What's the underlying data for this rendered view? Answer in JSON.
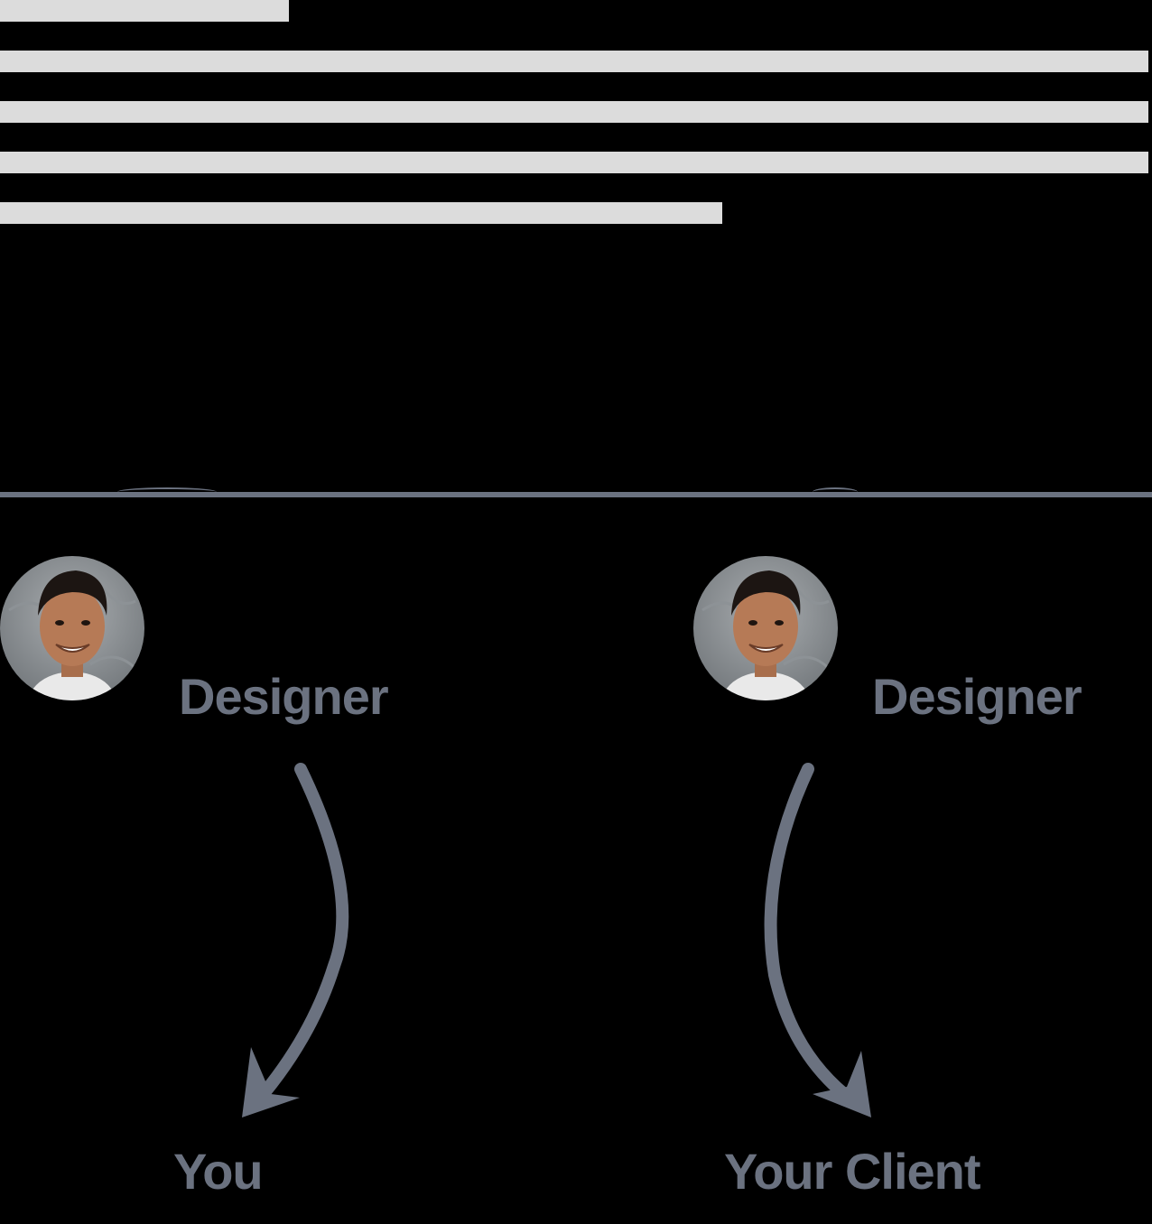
{
  "colors": {
    "background": "#000000",
    "skeleton": "#dcdcdc",
    "accent": "#6b7280"
  },
  "left_column": {
    "role_label": "Designer",
    "end_label": "You",
    "avatar_icon": "person-photo-icon",
    "arrow_icon": "curved-arrow-down-left-icon"
  },
  "right_column": {
    "role_label": "Designer",
    "end_label": "Your Client",
    "avatar_icon": "person-photo-icon",
    "arrow_icon": "curved-arrow-down-right-icon"
  }
}
